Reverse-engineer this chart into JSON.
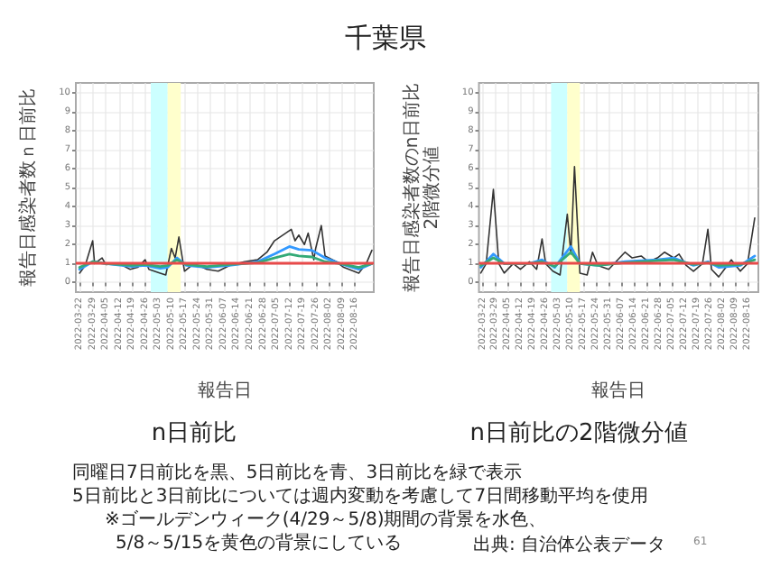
{
  "chart_data": [
    {
      "type": "line",
      "title": "n日前比",
      "xlabel": "報告日",
      "ylabel": "報告日感染者数ｎ日前比",
      "annotations": [
        "千葉県",
        "同曜日7日前比を黒、5日前比を青、3日前比を緑で表示",
        "5日前比と3日前比については週内変動を考慮して7日間移動平均を使用",
        "※ゴールデンウィーク(4/29～5/8)期間の背景を水色、",
        "5/8～5/15を黄色の背景にしている",
        "出典: 自治体公表データ",
        "61"
      ],
      "xlim": [
        "2022-03-20",
        "2022-08-26"
      ],
      "xticks": [
        "2022-03-22",
        "2022-03-29",
        "2022-04-05",
        "2022-04-12",
        "2022-04-19",
        "2022-04-26",
        "2022-05-03",
        "2022-05-10",
        "2022-05-17",
        "2022-05-24",
        "2022-05-31",
        "2022-06-07",
        "2022-06-14",
        "2022-06-21",
        "2022-06-28",
        "2022-07-05",
        "2022-07-12",
        "2022-07-19",
        "2022-07-26",
        "2022-08-02",
        "2022-08-09",
        "2022-08-16"
      ],
      "ylim": [
        -0.5,
        10.5
      ],
      "yticks": [
        0,
        1,
        2,
        3,
        4,
        5,
        6,
        7,
        8,
        9,
        10
      ],
      "grid": true,
      "bands": [
        {
          "axis": "x",
          "from": "2022-04-29",
          "to": "2022-05-08",
          "color": "#ccffff"
        },
        {
          "axis": "x",
          "from": "2022-05-08",
          "to": "2022-05-15",
          "color": "#ffffcc"
        }
      ],
      "ref_lines": [
        {
          "axis": "y",
          "value": 1,
          "color": "#e84a4a"
        }
      ],
      "series": [
        {
          "color": "#333333",
          "x": [
            "2022-03-22",
            "2022-03-25",
            "2022-03-29",
            "2022-03-30",
            "2022-04-03",
            "2022-04-05",
            "2022-04-12",
            "2022-04-18",
            "2022-04-22",
            "2022-04-26",
            "2022-04-28",
            "2022-05-04",
            "2022-05-07",
            "2022-05-10",
            "2022-05-12",
            "2022-05-14",
            "2022-05-17",
            "2022-05-22",
            "2022-05-29",
            "2022-06-04",
            "2022-06-10",
            "2022-06-18",
            "2022-06-25",
            "2022-06-30",
            "2022-07-04",
            "2022-07-10",
            "2022-07-13",
            "2022-07-15",
            "2022-07-17",
            "2022-07-20",
            "2022-07-22",
            "2022-07-25",
            "2022-07-26",
            "2022-07-29",
            "2022-07-31",
            "2022-08-06",
            "2022-08-10",
            "2022-08-18",
            "2022-08-22",
            "2022-08-25"
          ],
          "values": [
            0.5,
            0.9,
            2.2,
            1.0,
            1.3,
            0.95,
            1.0,
            0.7,
            0.8,
            1.2,
            0.7,
            0.5,
            0.4,
            1.8,
            1.3,
            2.4,
            0.6,
            1.0,
            0.7,
            0.6,
            0.9,
            1.1,
            1.2,
            1.6,
            2.2,
            2.6,
            2.8,
            2.2,
            2.5,
            2.0,
            2.6,
            1.2,
            1.8,
            3.0,
            1.4,
            1.1,
            0.8,
            0.5,
            1.0,
            1.7
          ]
        },
        {
          "color": "#3399ff",
          "x": [
            "2022-03-22",
            "2022-03-29",
            "2022-04-05",
            "2022-04-19",
            "2022-04-26",
            "2022-05-04",
            "2022-05-08",
            "2022-05-13",
            "2022-05-18",
            "2022-05-29",
            "2022-06-10",
            "2022-06-25",
            "2022-07-04",
            "2022-07-12",
            "2022-07-17",
            "2022-07-24",
            "2022-07-31",
            "2022-08-08",
            "2022-08-18",
            "2022-08-25"
          ],
          "values": [
            0.7,
            1.1,
            1.0,
            0.85,
            0.9,
            0.75,
            0.8,
            1.3,
            0.9,
            0.8,
            0.9,
            1.1,
            1.5,
            1.9,
            1.75,
            1.7,
            1.3,
            1.0,
            0.7,
            1.0
          ]
        },
        {
          "color": "#33aa77",
          "x": [
            "2022-03-22",
            "2022-03-29",
            "2022-04-05",
            "2022-04-19",
            "2022-04-26",
            "2022-05-04",
            "2022-05-08",
            "2022-05-13",
            "2022-05-18",
            "2022-05-29",
            "2022-06-10",
            "2022-06-25",
            "2022-07-04",
            "2022-07-12",
            "2022-07-17",
            "2022-07-24",
            "2022-07-31",
            "2022-08-08",
            "2022-08-18",
            "2022-08-25"
          ],
          "values": [
            0.8,
            1.1,
            1.0,
            0.9,
            0.95,
            0.85,
            0.9,
            1.2,
            0.95,
            0.85,
            0.95,
            1.05,
            1.3,
            1.5,
            1.4,
            1.35,
            1.1,
            1.0,
            0.8,
            1.0
          ]
        }
      ]
    },
    {
      "type": "line",
      "title": "n日前比の2階微分値",
      "xlabel": "報告日",
      "ylabel": "報告日感染者数のn日前比\n2階微分値",
      "xlim": [
        "2022-03-20",
        "2022-08-22"
      ],
      "xticks": [
        "2022-03-22",
        "2022-03-29",
        "2022-04-05",
        "2022-04-12",
        "2022-04-19",
        "2022-04-26",
        "2022-05-03",
        "2022-05-10",
        "2022-05-17",
        "2022-05-24",
        "2022-05-31",
        "2022-06-07",
        "2022-06-14",
        "2022-06-21",
        "2022-06-28",
        "2022-07-05",
        "2022-07-12",
        "2022-07-19",
        "2022-07-26",
        "2022-08-02",
        "2022-08-09",
        "2022-08-16"
      ],
      "ylim": [
        -0.5,
        10.5
      ],
      "yticks": [
        0,
        1,
        2,
        3,
        4,
        5,
        6,
        7,
        8,
        9,
        10
      ],
      "grid": true,
      "bands": [
        {
          "axis": "x",
          "from": "2022-04-29",
          "to": "2022-05-08",
          "color": "#ccffff"
        },
        {
          "axis": "x",
          "from": "2022-05-08",
          "to": "2022-05-15",
          "color": "#ffffcc"
        }
      ],
      "ref_lines": [
        {
          "axis": "y",
          "value": 1,
          "color": "#e84a4a"
        }
      ],
      "series": [
        {
          "color": "#333333",
          "x": [
            "2022-03-21",
            "2022-03-24",
            "2022-03-28",
            "2022-03-31",
            "2022-04-03",
            "2022-04-08",
            "2022-04-12",
            "2022-04-17",
            "2022-04-21",
            "2022-04-24",
            "2022-04-26",
            "2022-04-30",
            "2022-05-04",
            "2022-05-08",
            "2022-05-10",
            "2022-05-12",
            "2022-05-15",
            "2022-05-19",
            "2022-05-22",
            "2022-05-25",
            "2022-05-31",
            "2022-06-04",
            "2022-06-09",
            "2022-06-13",
            "2022-06-18",
            "2022-06-22",
            "2022-06-27",
            "2022-07-01",
            "2022-07-06",
            "2022-07-09",
            "2022-07-13",
            "2022-07-17",
            "2022-07-22",
            "2022-07-25",
            "2022-07-27",
            "2022-07-31",
            "2022-08-04",
            "2022-08-07",
            "2022-08-12",
            "2022-08-16",
            "2022-08-20"
          ],
          "values": [
            0.5,
            1.0,
            4.9,
            1.0,
            0.5,
            1.0,
            0.7,
            1.1,
            0.7,
            2.3,
            1.0,
            0.6,
            0.4,
            3.6,
            1.5,
            6.1,
            0.5,
            0.4,
            1.6,
            0.9,
            0.7,
            1.1,
            1.6,
            1.3,
            1.4,
            1.1,
            1.3,
            1.6,
            1.3,
            1.5,
            0.9,
            0.6,
            1.0,
            2.8,
            0.7,
            0.3,
            0.8,
            1.2,
            0.6,
            1.0,
            3.4
          ]
        },
        {
          "color": "#3399ff",
          "x": [
            "2022-03-21",
            "2022-03-28",
            "2022-04-03",
            "2022-04-17",
            "2022-04-24",
            "2022-05-01",
            "2022-05-10",
            "2022-05-15",
            "2022-05-25",
            "2022-06-09",
            "2022-06-27",
            "2022-07-06",
            "2022-07-17",
            "2022-07-25",
            "2022-07-31",
            "2022-08-12",
            "2022-08-20"
          ],
          "values": [
            0.8,
            1.5,
            1.0,
            1.0,
            1.2,
            0.8,
            1.9,
            1.0,
            0.9,
            1.1,
            1.2,
            1.3,
            0.9,
            1.1,
            0.8,
            0.9,
            1.4
          ]
        },
        {
          "color": "#33aa77",
          "x": [
            "2022-03-21",
            "2022-03-28",
            "2022-04-03",
            "2022-04-17",
            "2022-04-24",
            "2022-05-01",
            "2022-05-10",
            "2022-05-15",
            "2022-05-25",
            "2022-06-09",
            "2022-06-27",
            "2022-07-06",
            "2022-07-17",
            "2022-07-25",
            "2022-07-31",
            "2022-08-12",
            "2022-08-20"
          ],
          "values": [
            0.9,
            1.3,
            1.0,
            1.0,
            1.1,
            0.85,
            1.6,
            1.0,
            0.9,
            1.05,
            1.15,
            1.2,
            0.95,
            1.05,
            0.9,
            0.95,
            1.2
          ]
        }
      ]
    }
  ]
}
